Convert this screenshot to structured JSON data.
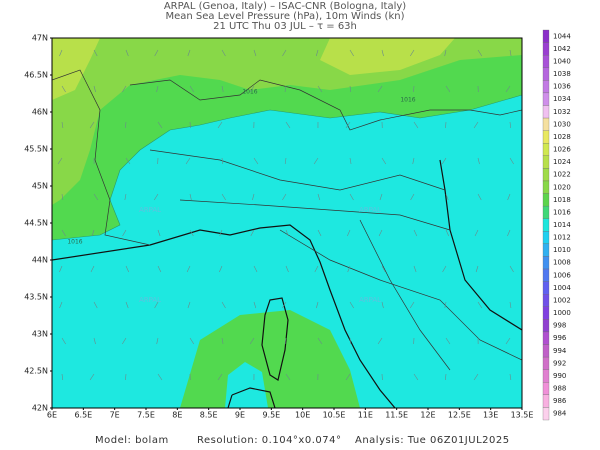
{
  "header": {
    "line1": "ARPAL (Genoa, Italy)  –  ISAC-CNR (Bologna, Italy)",
    "line2": "Mean Sea Level Pressure (hPa), 10m Winds (kn)",
    "line3": "21 UTC Thu 03 JUL  –  τ = 63h"
  },
  "map": {
    "lat_labels": [
      "47N",
      "46.5N",
      "46N",
      "45.5N",
      "45N",
      "44.5N",
      "44N",
      "43.5N",
      "43N",
      "42.5N",
      "42N"
    ],
    "lon_labels": [
      "6E",
      "6.5E",
      "7E",
      "7.5E",
      "8E",
      "8.5E",
      "9E",
      "9.5E",
      "10E",
      "10.5E",
      "11E",
      "11.5E",
      "12E",
      "12.5E",
      "13E",
      "13.5E"
    ],
    "isobar_labels": [
      "1016",
      "1016",
      "1016"
    ],
    "watermark": "ARPAL"
  },
  "colorbar": [
    {
      "label": "1044",
      "color": "#8b2fc9"
    },
    {
      "label": "1042",
      "color": "#9a3fd1"
    },
    {
      "label": "1040",
      "color": "#a852d8"
    },
    {
      "label": "1038",
      "color": "#b566de"
    },
    {
      "label": "1036",
      "color": "#c27ae4"
    },
    {
      "label": "1034",
      "color": "#cf8fea"
    },
    {
      "label": "1032",
      "color": "#f0c0f0"
    },
    {
      "label": "1030",
      "color": "#f5e0a0"
    },
    {
      "label": "1028",
      "color": "#e8e860"
    },
    {
      "label": "1026",
      "color": "#d0e850"
    },
    {
      "label": "1024",
      "color": "#b8e04a"
    },
    {
      "label": "1022",
      "color": "#a0dc48"
    },
    {
      "label": "1020",
      "color": "#88d848"
    },
    {
      "label": "1018",
      "color": "#5cd44c"
    },
    {
      "label": "1016",
      "color": "#40d878"
    },
    {
      "label": "1014",
      "color": "#1ee6dc"
    },
    {
      "label": "1012",
      "color": "#20d0f0"
    },
    {
      "label": "1010",
      "color": "#30b0f0"
    },
    {
      "label": "1008",
      "color": "#4090f0"
    },
    {
      "label": "1006",
      "color": "#5078f0"
    },
    {
      "label": "1004",
      "color": "#6060f0"
    },
    {
      "label": "1002",
      "color": "#7050e8"
    },
    {
      "label": "1000",
      "color": "#8040e0"
    },
    {
      "label": "998",
      "color": "#9040d0"
    },
    {
      "label": "996",
      "color": "#b050d0"
    },
    {
      "label": "994",
      "color": "#c060c8"
    },
    {
      "label": "992",
      "color": "#d070c8"
    },
    {
      "label": "990",
      "color": "#e080d0"
    },
    {
      "label": "988",
      "color": "#f090d8"
    },
    {
      "label": "986",
      "color": "#f8b0e0"
    },
    {
      "label": "984",
      "color": "#fcd0ec"
    }
  ],
  "footer": {
    "model": "Model: bolam",
    "resolution": "Resolution: 0.104°x0.074°",
    "analysis": "Analysis: Tue 06Z01JUL2025"
  }
}
